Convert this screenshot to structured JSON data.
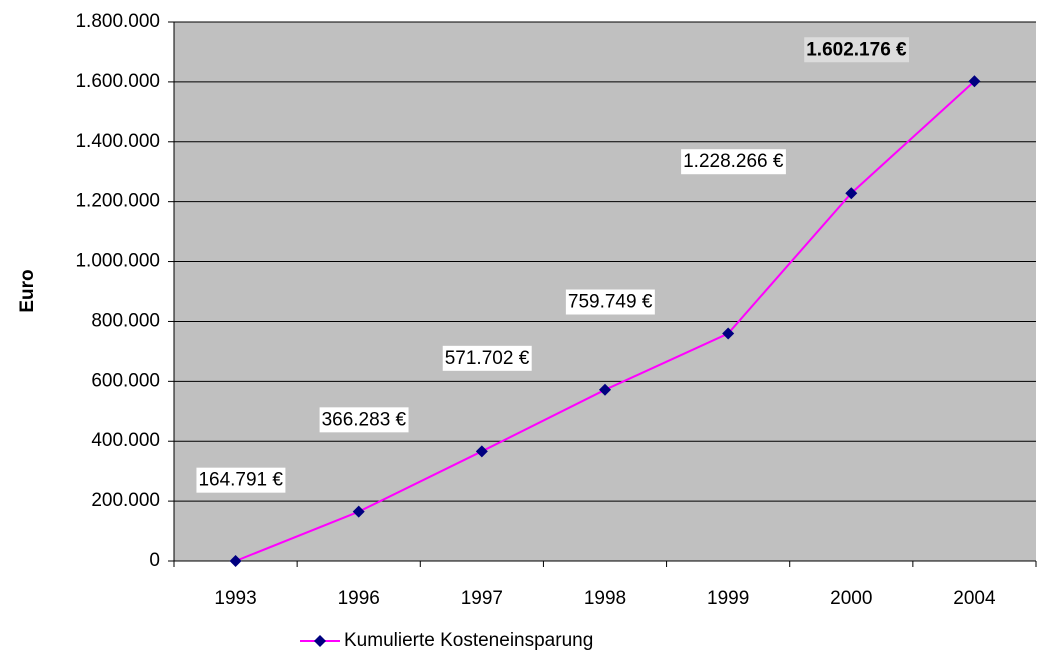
{
  "chart_data": {
    "type": "line",
    "y_label": "Euro",
    "categories": [
      "1993",
      "1996",
      "1997",
      "1998",
      "1999",
      "2000",
      "2004"
    ],
    "series": [
      {
        "name": "Kumulierte Kosteneinsparung",
        "color": "#ff00ff",
        "marker_color": "#000080",
        "values": [
          0,
          164791,
          366283,
          571702,
          759749,
          1228266,
          1602176
        ],
        "value_labels": [
          null,
          "164.791 €",
          "366.283 €",
          "571.702 €",
          "759.749 €",
          "1.228.266 €",
          "1.602.176 €"
        ]
      }
    ],
    "ylim": [
      0,
      1800000
    ],
    "yticks": [
      0,
      {
        "value": 200000,
        "label": "200.000"
      },
      {
        "value": 400000,
        "label": "400.000"
      },
      {
        "value": 600000,
        "label": "600.000"
      },
      {
        "value": 800000,
        "label": "800.000"
      },
      {
        "value": 1000000,
        "label": "1.000.000"
      },
      {
        "value": 1200000,
        "label": "1.200.000"
      },
      {
        "value": 1400000,
        "label": "1.400.000"
      },
      {
        "value": 1600000,
        "label": "1.600.000"
      },
      {
        "value": 1800000,
        "label": "1.800.000"
      }
    ],
    "grid": true,
    "plot_background": "#c0c0c0",
    "legend": "bottom"
  }
}
